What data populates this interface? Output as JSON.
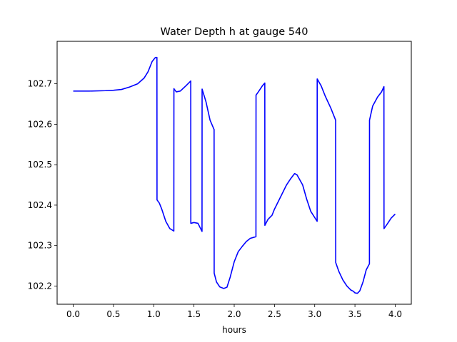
{
  "chart_data": {
    "type": "line",
    "title": "Water Depth h at gauge 540",
    "xlabel": "hours",
    "ylabel": "",
    "xlim": [
      -0.2,
      4.2
    ],
    "ylim": [
      102.155,
      102.805
    ],
    "grid": false,
    "xticks": [
      0.0,
      0.5,
      1.0,
      1.5,
      2.0,
      2.5,
      3.0,
      3.5,
      4.0
    ],
    "xtick_labels": [
      "0.0",
      "0.5",
      "1.0",
      "1.5",
      "2.0",
      "2.5",
      "3.0",
      "3.5",
      "4.0"
    ],
    "yticks": [
      102.2,
      102.3,
      102.4,
      102.5,
      102.6,
      102.7
    ],
    "ytick_labels": [
      "102.2",
      "102.3",
      "102.4",
      "102.5",
      "102.6",
      "102.7"
    ],
    "line_color": "#0000ff",
    "series": [
      {
        "x": [
          0.0,
          0.2,
          0.4,
          0.5,
          0.6,
          0.7,
          0.8,
          0.88,
          0.93,
          0.98,
          1.02,
          1.04,
          1.041,
          1.07,
          1.1,
          1.15,
          1.2,
          1.25,
          1.251,
          1.28,
          1.33,
          1.4,
          1.46,
          1.461,
          1.5,
          1.55,
          1.6,
          1.601,
          1.65,
          1.7,
          1.75,
          1.751,
          1.78,
          1.82,
          1.87,
          1.91,
          1.95,
          2.0,
          2.05,
          2.1,
          2.15,
          2.2,
          2.27,
          2.271,
          2.3,
          2.35,
          2.38,
          2.381,
          2.42,
          2.47,
          2.5,
          2.55,
          2.6,
          2.65,
          2.7,
          2.75,
          2.78,
          2.85,
          2.9,
          2.95,
          3.03,
          3.031,
          3.08,
          3.13,
          3.2,
          3.26,
          3.261,
          3.3,
          3.35,
          3.4,
          3.45,
          3.48,
          3.5,
          3.53,
          3.56,
          3.6,
          3.64,
          3.68,
          3.681,
          3.72,
          3.78,
          3.83,
          3.86,
          3.861,
          3.9,
          3.95,
          4.0
        ],
        "y": [
          102.682,
          102.682,
          102.683,
          102.684,
          102.686,
          102.692,
          102.7,
          102.714,
          102.73,
          102.755,
          102.765,
          102.765,
          102.413,
          102.405,
          102.39,
          102.36,
          102.342,
          102.336,
          102.688,
          102.68,
          102.682,
          102.695,
          102.707,
          102.355,
          102.357,
          102.355,
          102.335,
          102.687,
          102.655,
          102.61,
          102.587,
          102.232,
          102.21,
          102.198,
          102.194,
          102.197,
          102.222,
          102.26,
          102.285,
          102.298,
          102.31,
          102.318,
          102.322,
          102.672,
          102.68,
          102.695,
          102.702,
          102.35,
          102.365,
          102.375,
          102.39,
          102.41,
          102.43,
          102.45,
          102.465,
          102.478,
          102.475,
          102.45,
          102.415,
          102.385,
          102.36,
          102.712,
          102.695,
          102.67,
          102.64,
          102.61,
          102.258,
          102.236,
          102.215,
          102.2,
          102.19,
          102.187,
          102.183,
          102.182,
          102.188,
          102.21,
          102.24,
          102.255,
          102.61,
          102.645,
          102.667,
          102.68,
          102.693,
          102.342,
          102.353,
          102.368,
          102.378
        ]
      }
    ]
  }
}
